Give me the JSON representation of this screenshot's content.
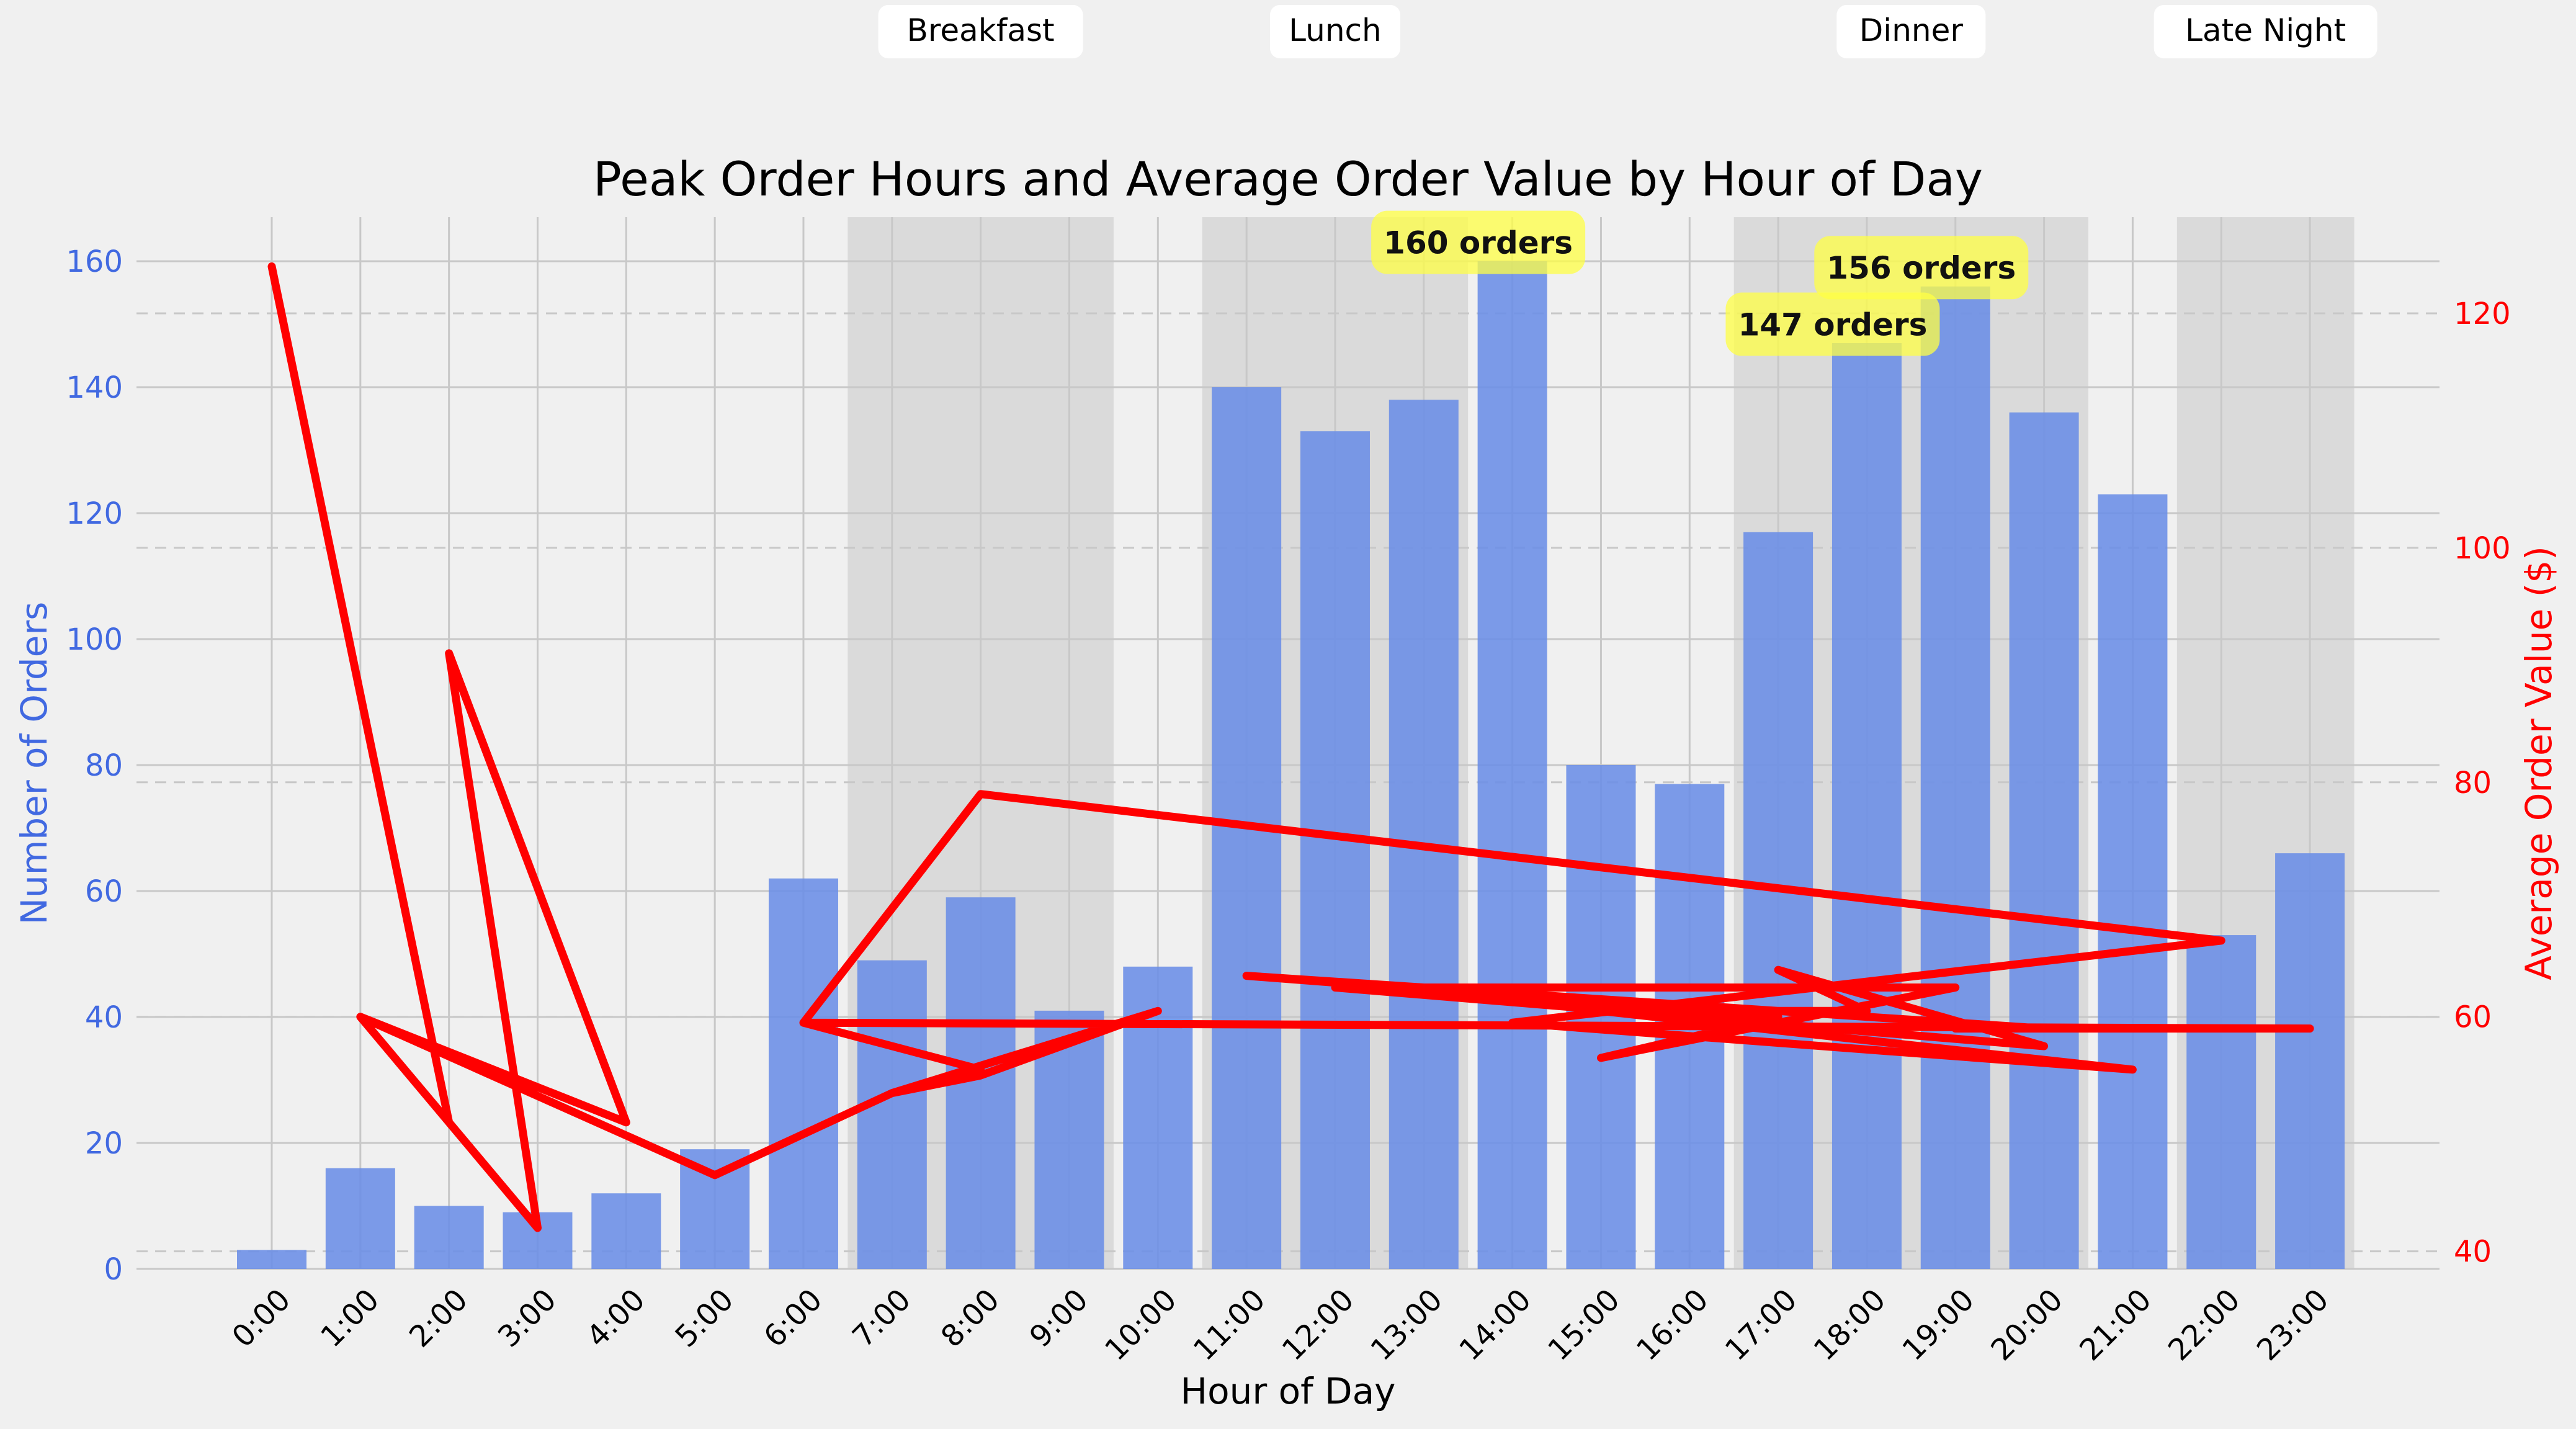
{
  "chart_data": {
    "type": "bar",
    "title": "Peak Order Hours and Average Order Value by Hour of Day",
    "xlabel": "Hour of Day",
    "ylabel": "Number of Orders",
    "y2label": "Average Order Value ($)",
    "ylim": [
      0,
      167
    ],
    "y2lim": [
      38.5,
      128.2
    ],
    "yticks": [
      0,
      20,
      40,
      60,
      80,
      100,
      120,
      140,
      160
    ],
    "y2ticks": [
      40,
      60,
      80,
      100,
      120
    ],
    "grid": true,
    "categories": [
      "0:00",
      "1:00",
      "2:00",
      "3:00",
      "4:00",
      "5:00",
      "6:00",
      "7:00",
      "8:00",
      "9:00",
      "10:00",
      "11:00",
      "12:00",
      "13:00",
      "14:00",
      "15:00",
      "16:00",
      "17:00",
      "18:00",
      "19:00",
      "20:00",
      "21:00",
      "22:00",
      "23:00"
    ],
    "series": [
      {
        "type": "bar",
        "axis": "left",
        "color": "#6a8de6",
        "values": [
          3,
          16,
          10,
          9,
          12,
          19,
          62,
          49,
          59,
          41,
          48,
          140,
          133,
          138,
          160,
          80,
          77,
          117,
          147,
          156,
          136,
          123,
          53,
          66
        ]
      },
      {
        "type": "line",
        "axis": "right",
        "color": "#ff0000",
        "points": [
          [
            "0:00",
            124
          ],
          [
            "2:00",
            51
          ],
          [
            "1:00",
            60
          ],
          [
            "4:00",
            51
          ],
          [
            "2:00",
            91
          ],
          [
            "3:00",
            42
          ],
          [
            "2:00",
            91
          ],
          [
            "3:00",
            42
          ],
          [
            "1:00",
            60
          ],
          [
            "5:00",
            46.5
          ],
          [
            "7:00",
            53.5
          ],
          [
            "10:00",
            60.5
          ],
          [
            "8:00",
            55
          ],
          [
            "7:00",
            53.5
          ],
          [
            "8:00",
            55.5
          ],
          [
            "6:00",
            59.5
          ],
          [
            "8:00",
            79
          ],
          [
            "22:00",
            66.5
          ],
          [
            "14:00",
            59.5
          ],
          [
            "21:00",
            55.5
          ],
          [
            "15:00",
            60.5
          ],
          [
            "18:00",
            60.5
          ],
          [
            "17:00",
            64
          ],
          [
            "20:00",
            57.5
          ],
          [
            "12:00",
            62.5
          ],
          [
            "19:00",
            62.5
          ],
          [
            "15:00",
            56.5
          ],
          [
            "17:00",
            60
          ],
          [
            "11:00",
            63.5
          ],
          [
            "20:00",
            59
          ],
          [
            "19:00",
            59
          ],
          [
            "23:00",
            59
          ],
          [
            "6:00",
            59.5
          ]
        ]
      }
    ],
    "annotations": [
      {
        "label": "160 orders",
        "x": "14:00",
        "y": 163
      },
      {
        "label": "156 orders",
        "x": "19:00",
        "y": 159
      },
      {
        "label": "147 orders",
        "x": "18:00",
        "y": 150
      }
    ],
    "meal_periods": [
      {
        "label": "Breakfast",
        "start": 6.5,
        "end": 9.5
      },
      {
        "label": "Lunch",
        "start": 10.5,
        "end": 13.5
      },
      {
        "label": "Dinner",
        "start": 16.5,
        "end": 20.5
      },
      {
        "label": "Late Night",
        "start": 21.5,
        "end": 23.5
      }
    ],
    "colors": {
      "bar": "#6a8de6",
      "line": "#ff0000",
      "left_axis": "#4169e1",
      "right_axis": "#ff0000",
      "shade": "#d4d4d4",
      "annotation": "#ffff44",
      "background": "#f0f0f0"
    }
  }
}
